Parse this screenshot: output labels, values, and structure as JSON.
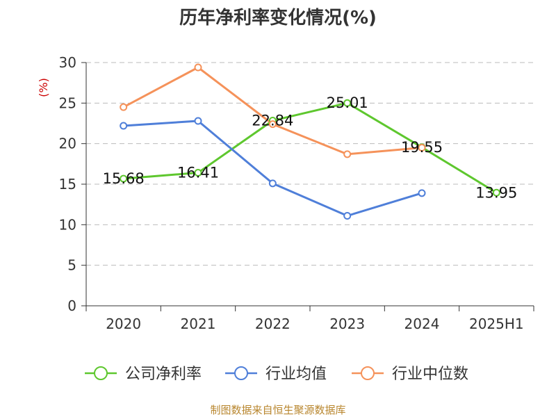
{
  "chart_data": {
    "type": "line",
    "title": "历年净利率变化情况(%)",
    "ylabel": "(%)",
    "xlabel": "",
    "categories": [
      "2020",
      "2021",
      "2022",
      "2023",
      "2024",
      "2025H1"
    ],
    "ylim": [
      0,
      30
    ],
    "yticks": [
      "0",
      "5",
      "10",
      "15",
      "20",
      "25",
      "30"
    ],
    "grid": true,
    "legend_position": "bottom",
    "series": [
      {
        "name": "公司净利率",
        "color": "#5ec72e",
        "values": [
          15.68,
          16.41,
          22.84,
          25.01,
          19.55,
          13.95
        ],
        "labels": [
          "15.68",
          "16.41",
          "22.84",
          "25.01",
          "19.55",
          "13.95"
        ]
      },
      {
        "name": "行业均值",
        "color": "#4f7fd9",
        "values": [
          22.2,
          22.8,
          15.1,
          11.1,
          13.9,
          null
        ]
      },
      {
        "name": "行业中位数",
        "color": "#f5925a",
        "values": [
          24.5,
          29.4,
          22.4,
          18.7,
          19.5,
          null
        ]
      }
    ],
    "source": "制图数据来自恒生聚源数据库"
  }
}
